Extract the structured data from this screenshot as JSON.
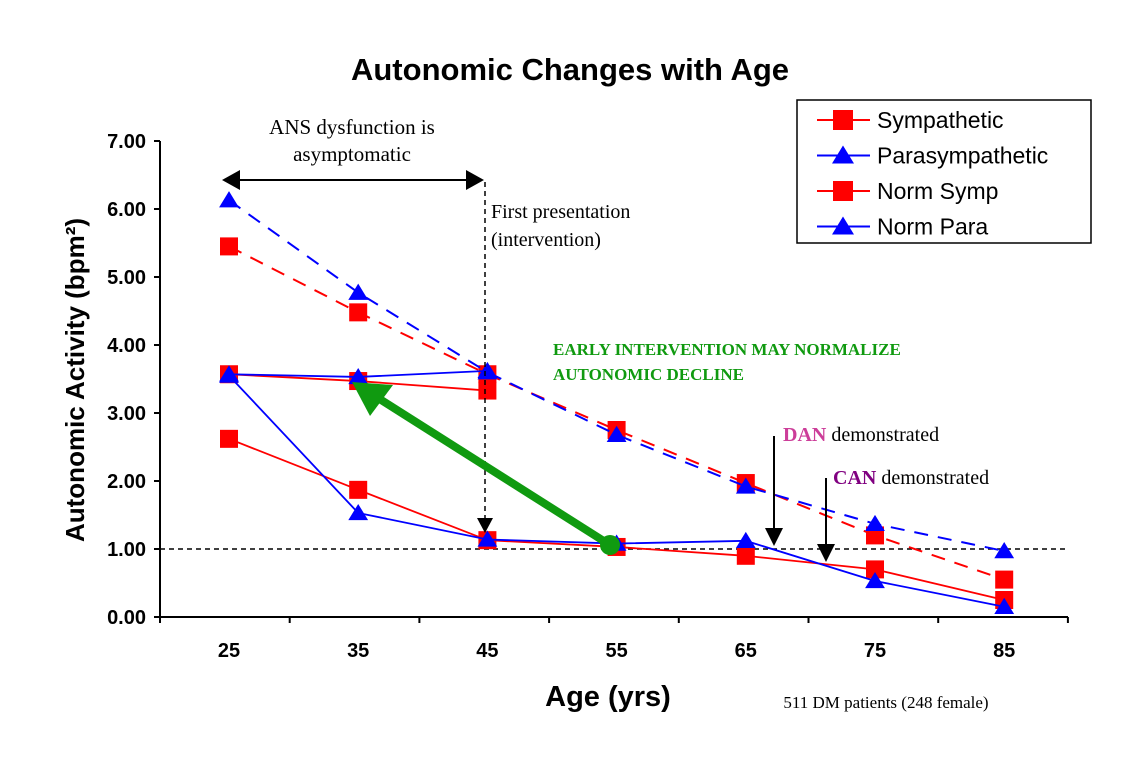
{
  "chart_data": {
    "type": "line",
    "title": "Autonomic Changes with Age",
    "xlabel": "Age (yrs)",
    "ylabel": "Autonomic Activity (bpm²)",
    "categories": [
      "25",
      "35",
      "45",
      "55",
      "65",
      "75",
      "85"
    ],
    "x": [
      25,
      35,
      45,
      55,
      65,
      75,
      85
    ],
    "y_ticks": [
      "0.00",
      "1.00",
      "2.00",
      "3.00",
      "4.00",
      "5.00",
      "6.00",
      "7.00"
    ],
    "ylim": [
      0,
      7
    ],
    "grid": false,
    "legend_position": "top-right",
    "series": [
      {
        "name": "Sympathetic",
        "color": "#ff0000",
        "marker": "square",
        "dash": false,
        "values": [
          2.62,
          1.87,
          1.13,
          1.03,
          0.9,
          0.7,
          0.25
        ]
      },
      {
        "name": "Parasympathetic",
        "color": "#0000ff",
        "marker": "triangle",
        "dash": false,
        "values": [
          3.55,
          1.53,
          1.14,
          1.08,
          1.12,
          0.53,
          0.15
        ]
      },
      {
        "name": "Norm Symp",
        "color": "#ff0000",
        "marker": "square",
        "dash": true,
        "values": [
          5.45,
          4.48,
          3.57,
          2.75,
          1.97,
          1.2,
          0.55
        ]
      },
      {
        "name": "Norm Para",
        "color": "#0000ff",
        "marker": "triangle",
        "dash": true,
        "values": [
          6.13,
          4.77,
          3.6,
          2.68,
          1.92,
          1.37,
          0.97
        ]
      },
      {
        "color": "#ff0000",
        "marker": "square",
        "dash": false,
        "values": [
          3.57,
          3.47,
          3.33,
          null,
          null,
          null,
          null
        ]
      },
      {
        "color": "#0000ff",
        "marker": "triangle",
        "dash": false,
        "values": [
          3.57,
          3.53,
          3.62,
          null,
          null,
          null,
          null
        ]
      }
    ],
    "reference_line": 1.0,
    "annotations": {
      "asymptomatic_line1": "ANS dysfunction is",
      "asymptomatic_line2": "asymptomatic",
      "first_presentation_line1": "First presentation",
      "first_presentation_line2": "(intervention)",
      "early_line1": "EARLY INTERVENTION MAY NORMALIZE",
      "early_line2": "AUTONOMIC DECLINE",
      "dan_label": "DAN",
      "can_label": "CAN",
      "demonstrated": "demonstrated",
      "footnote": "511 DM patients (248 female)"
    },
    "colors": {
      "green": "#109a10",
      "dan": "#cc3d99",
      "can": "#800080"
    }
  }
}
